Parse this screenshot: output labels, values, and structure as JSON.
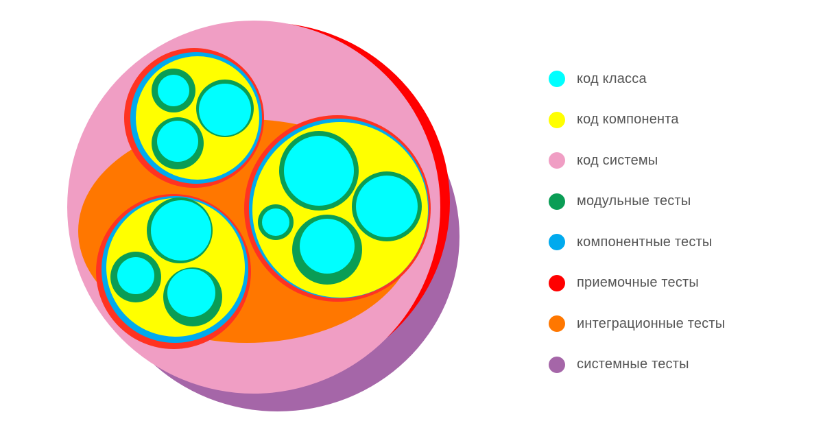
{
  "legend": [
    {
      "key": "class_code",
      "label": "код класса",
      "color": "#00ffff"
    },
    {
      "key": "component_code",
      "label": "код компонента",
      "color": "#ffff00"
    },
    {
      "key": "system_code",
      "label": "код системы",
      "color": "#f09ec4"
    },
    {
      "key": "unit_tests",
      "label": "модульные тесты",
      "color": "#0a9d55"
    },
    {
      "key": "component_tests",
      "label": "компонентные тесты",
      "color": "#00aaee"
    },
    {
      "key": "acceptance_tests",
      "label": "приемочные тесты",
      "color": "#ff0000"
    },
    {
      "key": "integration_tests",
      "label": "интеграционные тесты",
      "color": "#ff7700"
    },
    {
      "key": "system_tests",
      "label": "системные тесты",
      "color": "#a566a8"
    }
  ],
  "diagram": {
    "components": [
      {
        "name": "component-top-left",
        "classes": 3
      },
      {
        "name": "component-right",
        "classes": 4
      },
      {
        "name": "component-bottom-left",
        "classes": 3
      }
    ]
  }
}
